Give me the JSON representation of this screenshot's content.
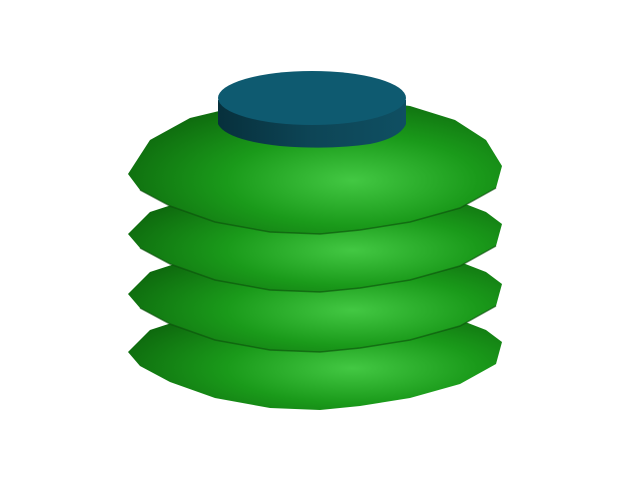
{
  "scene": {
    "subject": "stacked-green-rings-with-teal-cap",
    "background_color": "#ffffff",
    "colors": {
      "ring_dark": "#0a5a0a",
      "ring_mid": "#128a12",
      "ring_light": "#3ec43e",
      "cap_top": "#0e5a70",
      "cap_side_dark": "#07303c",
      "cap_side_light": "#0f4f62"
    }
  }
}
